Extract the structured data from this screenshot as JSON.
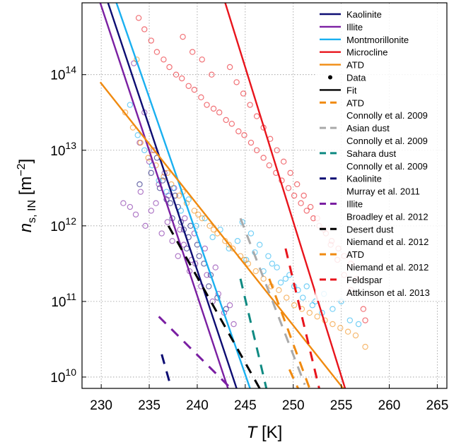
{
  "chart_data": {
    "type": "scatter",
    "xlabel": "T [K]",
    "ylabel": "n_s, IN [m^-2]",
    "xlim": [
      228,
      266
    ],
    "ylim_log10": [
      9.85,
      14.95
    ],
    "y_scale": "log",
    "grid": true,
    "legend_position": "top-right",
    "x_ticks": [
      "230",
      "235",
      "240",
      "245",
      "250",
      "255",
      "260",
      "265"
    ],
    "y_ticks": [
      {
        "base": "10",
        "exp": "10",
        "value": 10
      },
      {
        "base": "10",
        "exp": "11",
        "value": 11
      },
      {
        "base": "10",
        "exp": "12",
        "value": 12
      },
      {
        "base": "10",
        "exp": "13",
        "value": 13
      },
      {
        "base": "10",
        "exp": "14",
        "value": 14
      }
    ],
    "xlabel_parts": {
      "var": "T",
      "unit": " [K]"
    },
    "ylabel_parts": {
      "var": "n",
      "sub": "s, IN",
      "unit_open": " [m",
      "sup": "−2",
      "unit_close": "]"
    },
    "fit_lines": [
      {
        "name": "Kaolinite",
        "color": "#0d0d73",
        "points": [
          [
            229.0,
            15.6
          ],
          [
            244.1,
            9.85
          ]
        ]
      },
      {
        "name": "Illite",
        "color": "#7a1fa2",
        "points": [
          [
            228.2,
            15.6
          ],
          [
            243.2,
            9.85
          ]
        ]
      },
      {
        "name": "Montmorillonite",
        "color": "#1ab0f0",
        "points": [
          [
            230.9,
            15.2
          ],
          [
            245.5,
            9.85
          ]
        ]
      },
      {
        "name": "Microcline",
        "color": "#e8141c",
        "points": [
          [
            242.3,
            15.2
          ],
          [
            255.4,
            9.85
          ]
        ]
      },
      {
        "name": "ATD",
        "color": "#f08a10",
        "points": [
          [
            229.9,
            13.9
          ],
          [
            255.2,
            9.85
          ]
        ]
      }
    ],
    "literature_lines": [
      {
        "name": "Connolly et al. 2009 ATD",
        "color": "#f08a10",
        "points": [
          [
            249.6,
            10.1
          ],
          [
            250.5,
            9.85
          ]
        ]
      },
      {
        "name": "Connolly et al. 2009 Asian dust",
        "color": "#aaaaaa",
        "points": [
          [
            244.5,
            12.1
          ],
          [
            251.2,
            9.9
          ]
        ]
      },
      {
        "name": "Connolly et al. 2009 Sahara dust",
        "color": "#0f8a82",
        "points": [
          [
            244.5,
            11.3
          ],
          [
            247.2,
            9.85
          ]
        ]
      },
      {
        "name": "Murray et al. 2011 Kaolinite",
        "color": "#0d0d73",
        "points": [
          [
            236.3,
            10.3
          ],
          [
            237.3,
            9.85
          ]
        ]
      },
      {
        "name": "Broadley et al. 2012 Illite",
        "color": "#7a1fa2",
        "points": [
          [
            236.0,
            10.8
          ],
          [
            243.5,
            9.85
          ]
        ]
      },
      {
        "name": "Niemand et al. 2012 Desert dust",
        "color": "#000000",
        "points": [
          [
            237.0,
            12.0
          ],
          [
            246.5,
            9.85
          ]
        ]
      },
      {
        "name": "Niemand et al. 2012 ATD",
        "color": "#f08a10",
        "points": [
          [
            247.5,
            11.3
          ],
          [
            251.7,
            9.85
          ]
        ]
      },
      {
        "name": "Attkinson et al. 2013 Feldspar",
        "color": "#e8141c",
        "points": [
          [
            249.2,
            11.7
          ],
          [
            252.7,
            9.85
          ]
        ]
      }
    ],
    "scatter": [
      {
        "name": "Kaolinite",
        "color": "#0d0d73",
        "x": [
          234.0,
          235.2,
          236.1,
          236.8,
          237.4,
          238.0,
          238.6,
          239.3,
          240.0,
          240.7,
          241.4,
          235.8,
          236.4,
          237.2,
          238.3,
          239.1,
          240.2,
          241.2,
          242.1,
          243.0,
          237.7,
          238.9
        ],
        "y": [
          12.55,
          12.7,
          12.5,
          12.35,
          12.1,
          12.25,
          11.95,
          12.0,
          11.75,
          11.5,
          11.35,
          12.9,
          12.6,
          12.3,
          12.05,
          11.85,
          11.6,
          11.2,
          11.05,
          10.9,
          12.4,
          11.7
        ]
      },
      {
        "name": "Illite",
        "color": "#7a1fa2",
        "x": [
          232.3,
          233.0,
          233.6,
          234.1,
          234.6,
          235.2,
          235.7,
          236.3,
          236.9,
          237.4,
          238.0,
          238.6,
          239.2,
          239.8,
          240.4,
          241.0,
          241.6,
          242.2,
          242.8,
          243.4,
          233.4,
          234.5,
          235.5,
          236.6,
          237.6,
          238.7,
          239.7,
          240.8,
          241.9,
          243.8,
          234.0,
          235.0,
          236.0,
          237.0,
          238.2,
          239.4
        ],
        "y": [
          12.3,
          12.25,
          12.15,
          12.45,
          12.0,
          12.2,
          12.3,
          11.9,
          12.05,
          11.8,
          11.6,
          11.75,
          11.4,
          11.5,
          11.2,
          11.35,
          11.0,
          11.1,
          10.85,
          10.95,
          14.15,
          13.5,
          13.0,
          12.7,
          12.5,
          12.1,
          11.9,
          11.7,
          11.45,
          10.7,
          13.1,
          12.85,
          12.55,
          12.4,
          11.95,
          11.55
        ]
      },
      {
        "name": "Montmorillonite",
        "color": "#1ab0f0",
        "x": [
          233.0,
          233.8,
          234.5,
          235.3,
          236.0,
          236.8,
          237.5,
          238.3,
          239.1,
          239.9,
          240.8,
          241.6,
          242.4,
          243.3,
          244.2,
          245.1,
          246.0,
          246.9,
          247.8,
          248.7,
          249.6,
          250.5,
          251.4,
          252.3,
          253.2,
          254.1,
          255.0,
          255.9,
          256.8,
          244.7,
          245.6,
          246.5,
          247.4,
          248.3,
          249.2,
          250.1,
          251.0,
          252.0,
          253.0
        ],
        "y": [
          13.6,
          13.2,
          13.0,
          12.8,
          12.6,
          12.45,
          12.5,
          12.2,
          12.35,
          12.0,
          12.1,
          11.85,
          11.95,
          11.7,
          11.8,
          11.55,
          11.65,
          11.4,
          11.5,
          11.25,
          11.35,
          11.15,
          11.2,
          11.0,
          11.1,
          10.9,
          11.0,
          10.75,
          10.7,
          12.05,
          11.9,
          11.75,
          11.6,
          11.45,
          11.3,
          11.2,
          11.05,
          10.95,
          10.85
        ]
      },
      {
        "name": "Microcline",
        "color": "#e8141c",
        "x": [
          233.9,
          234.5,
          235.2,
          235.8,
          236.5,
          237.1,
          237.8,
          238.4,
          239.1,
          239.7,
          240.4,
          241.0,
          241.7,
          242.3,
          243.0,
          243.6,
          244.3,
          244.9,
          245.6,
          246.2,
          246.9,
          247.5,
          248.2,
          248.8,
          249.5,
          250.1,
          250.8,
          251.4,
          252.1,
          252.7,
          253.4,
          254.0,
          254.7,
          255.3,
          256.0,
          256.6,
          257.3,
          243.4,
          244.1,
          244.8,
          245.5,
          246.2,
          246.9,
          247.6,
          248.3,
          249.0,
          249.7,
          250.4,
          251.1,
          251.8,
          252.5,
          253.2,
          253.9,
          254.6,
          255.3,
          256.0,
          257.5,
          238.5,
          239.5,
          240.5,
          241.5
        ],
        "y": [
          14.75,
          14.6,
          14.45,
          14.3,
          14.2,
          14.1,
          14.0,
          13.95,
          13.85,
          13.8,
          13.7,
          13.6,
          13.55,
          13.5,
          13.4,
          13.35,
          13.25,
          13.2,
          13.1,
          13.0,
          12.9,
          12.8,
          12.7,
          12.6,
          12.5,
          12.4,
          12.3,
          12.2,
          12.1,
          12.0,
          11.9,
          11.8,
          11.7,
          11.6,
          11.5,
          11.3,
          10.9,
          14.1,
          13.9,
          13.75,
          13.6,
          13.45,
          13.3,
          13.15,
          13.0,
          12.85,
          12.7,
          12.55,
          12.4,
          12.25,
          12.1,
          11.95,
          11.75,
          11.55,
          11.35,
          11.15,
          10.75,
          14.5,
          14.3,
          14.2,
          14.0
        ]
      },
      {
        "name": "ATD",
        "color": "#f08a10",
        "x": [
          232.5,
          233.3,
          234.1,
          234.9,
          235.7,
          236.5,
          237.3,
          238.1,
          238.9,
          239.7,
          240.5,
          241.3,
          242.1,
          242.9,
          243.7,
          244.5,
          245.3,
          246.1,
          246.9,
          247.7,
          248.5,
          249.3,
          250.1,
          250.9,
          251.7,
          252.5,
          253.3,
          254.1,
          254.9,
          255.7,
          256.5,
          257.5,
          233.7,
          235.3,
          236.9,
          238.5,
          240.1,
          241.7,
          243.3,
          244.9
        ],
        "y": [
          13.5,
          13.3,
          13.1,
          12.9,
          12.8,
          12.65,
          12.55,
          12.4,
          12.3,
          12.2,
          12.1,
          12.0,
          11.9,
          11.8,
          11.7,
          11.6,
          11.5,
          11.4,
          11.3,
          11.2,
          11.15,
          11.05,
          10.95,
          10.9,
          10.85,
          10.8,
          10.75,
          10.7,
          10.65,
          10.6,
          10.55,
          10.4,
          14.2,
          13.0,
          12.7,
          12.45,
          12.15,
          11.95,
          11.75,
          11.55
        ]
      }
    ],
    "legend": [
      {
        "label": "Kaolinite",
        "kind": "line",
        "color": "#0d0d73"
      },
      {
        "label": "Illite",
        "kind": "line",
        "color": "#7a1fa2"
      },
      {
        "label": "Montmorillonite",
        "kind": "line",
        "color": "#1ab0f0"
      },
      {
        "label": "Microcline",
        "kind": "line",
        "color": "#e8141c"
      },
      {
        "label": "ATD",
        "kind": "line",
        "color": "#f08a10"
      },
      {
        "label": "Data",
        "kind": "dot",
        "color": "#000000"
      },
      {
        "label": "Fit",
        "kind": "line",
        "color": "#000000"
      },
      {
        "label": "ATD",
        "kind": "dash",
        "color": "#f08a10"
      },
      {
        "label": "Connolly et al. 2009",
        "kind": "none",
        "color": "#000000"
      },
      {
        "label": "Asian dust",
        "kind": "dash",
        "color": "#aaaaaa"
      },
      {
        "label": "Connolly et al. 2009",
        "kind": "none",
        "color": "#000000"
      },
      {
        "label": "Sahara dust",
        "kind": "dash",
        "color": "#0f8a82"
      },
      {
        "label": "Connolly et al. 2009",
        "kind": "none",
        "color": "#000000"
      },
      {
        "label": "Kaolinite",
        "kind": "dash",
        "color": "#0d0d73"
      },
      {
        "label": "Murray et al. 2011",
        "kind": "none",
        "color": "#000000"
      },
      {
        "label": "Illite",
        "kind": "dash",
        "color": "#7a1fa2"
      },
      {
        "label": "Broadley et al. 2012",
        "kind": "none",
        "color": "#000000"
      },
      {
        "label": "Desert dust",
        "kind": "dash",
        "color": "#000000"
      },
      {
        "label": "Niemand et al. 2012",
        "kind": "none",
        "color": "#000000"
      },
      {
        "label": "ATD",
        "kind": "dash",
        "color": "#f08a10"
      },
      {
        "label": "Niemand et al. 2012",
        "kind": "none",
        "color": "#000000"
      },
      {
        "label": "Feldspar",
        "kind": "dash",
        "color": "#e8141c"
      },
      {
        "label": "Attkinson et al. 2013",
        "kind": "none",
        "color": "#000000"
      }
    ]
  }
}
